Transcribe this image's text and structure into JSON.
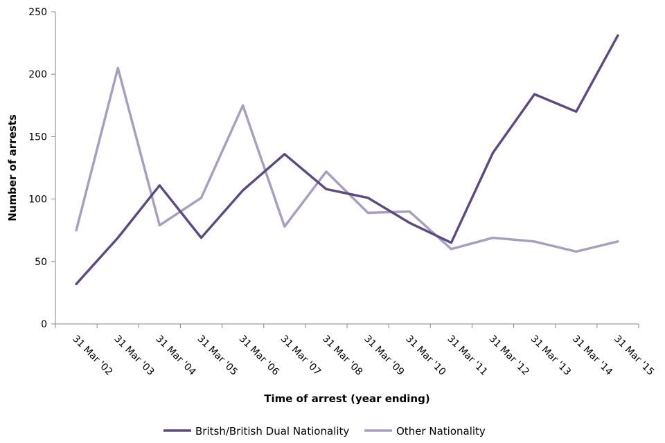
{
  "chart_data": {
    "type": "line",
    "title": "",
    "xlabel": "Time of arrest (year ending)",
    "ylabel": "Number of arrests",
    "ylim": [
      0,
      250
    ],
    "yticks": [
      0,
      50,
      100,
      150,
      200,
      250
    ],
    "grid": false,
    "legend_position": "bottom",
    "categories": [
      "31 Mar '02",
      "31 Mar '03",
      "31 Mar '04",
      "31 Mar '05",
      "31 Mar '06",
      "31 Mar '07",
      "31 Mar '08",
      "31 Mar '09",
      "31 Mar '10",
      "31 Mar '11",
      "31 Mar '12",
      "31 Mar '13",
      "31 Mar '14",
      "31 Mar '15"
    ],
    "series": [
      {
        "name": "Britsh/British Dual Nationality",
        "color": "#5e4b7e",
        "values": [
          32,
          69,
          111,
          69,
          107,
          136,
          108,
          101,
          81,
          65,
          137,
          184,
          170,
          231
        ]
      },
      {
        "name": "Other Nationality",
        "color": "#a89fbd",
        "values": [
          75,
          205,
          79,
          101,
          175,
          78,
          122,
          89,
          90,
          60,
          69,
          66,
          58,
          66
        ]
      }
    ]
  }
}
